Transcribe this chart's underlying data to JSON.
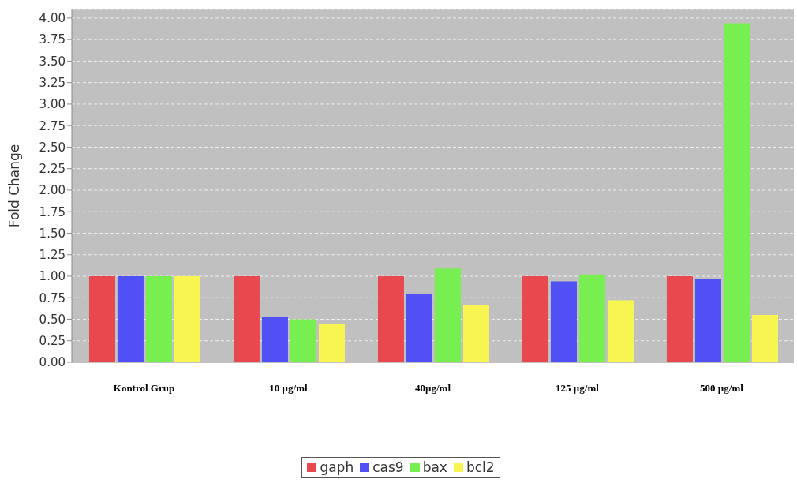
{
  "chart_data": {
    "type": "bar",
    "ylabel": "Fold Change",
    "categories": [
      "Kontrol Grup",
      "10 µg/ml",
      "40µg/ml",
      "125 µg/ml",
      "500 µg/ml"
    ],
    "series": [
      {
        "name": "gaph",
        "color": "#e8484e",
        "values": [
          1.0,
          1.0,
          1.0,
          1.0,
          1.0
        ]
      },
      {
        "name": "cas9",
        "color": "#5050f5",
        "values": [
          1.0,
          0.53,
          0.79,
          0.94,
          0.97
        ]
      },
      {
        "name": "bax",
        "color": "#78ef50",
        "values": [
          1.0,
          0.5,
          1.09,
          1.02,
          3.94
        ]
      },
      {
        "name": "bcl2",
        "color": "#f8f550",
        "values": [
          1.0,
          0.44,
          0.66,
          0.72,
          0.55
        ]
      }
    ],
    "ylim": [
      0,
      4.1
    ],
    "yticks": [
      {
        "value": 0,
        "label": "0.00"
      },
      {
        "value": 0.25,
        "label": "0.25"
      },
      {
        "value": 0.5,
        "label": "0.50"
      },
      {
        "value": 0.75,
        "label": "0.75"
      },
      {
        "value": 1,
        "label": "1.00"
      },
      {
        "value": 1.25,
        "label": "1.25"
      },
      {
        "value": 1.5,
        "label": "1.50"
      },
      {
        "value": 1.75,
        "label": "1.75"
      },
      {
        "value": 2,
        "label": "2.00"
      },
      {
        "value": 2.25,
        "label": "2.25"
      },
      {
        "value": 2.5,
        "label": "2.50"
      },
      {
        "value": 2.75,
        "label": "2.75"
      },
      {
        "value": 3,
        "label": "3.00"
      },
      {
        "value": 3.25,
        "label": "3.25"
      },
      {
        "value": 3.5,
        "label": "3.50"
      },
      {
        "value": 3.75,
        "label": "3.75"
      },
      {
        "value": 4,
        "label": "4.00"
      }
    ],
    "grid": "y",
    "legend": "bottom"
  }
}
